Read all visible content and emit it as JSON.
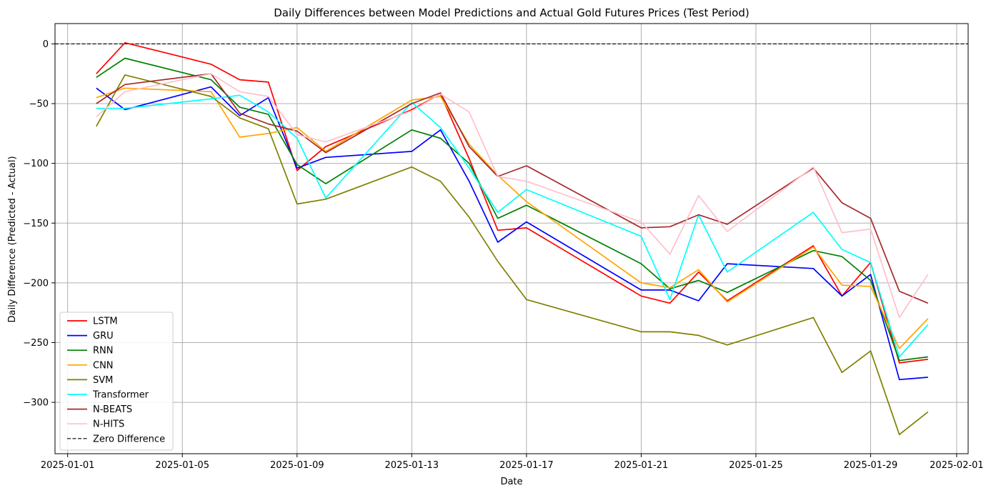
{
  "chart_data": {
    "type": "line",
    "title": "Daily Differences between Model Predictions and Actual Gold Futures Prices (Test Period)",
    "xlabel": "Date",
    "ylabel": "Daily Difference (Predicted - Actual)",
    "xlim": [
      "2025-01-01",
      "2025-02-01"
    ],
    "ylim": [
      -343,
      17
    ],
    "x_ticks": [
      "2025-01-01",
      "2025-01-05",
      "2025-01-09",
      "2025-01-13",
      "2025-01-17",
      "2025-01-21",
      "2025-01-25",
      "2025-01-29",
      "2025-02-01"
    ],
    "y_ticks": [
      0,
      -50,
      -100,
      -150,
      -200,
      -250,
      -300
    ],
    "grid": true,
    "legend_position": "lower left",
    "x": [
      "2025-01-02",
      "2025-01-03",
      "2025-01-06",
      "2025-01-07",
      "2025-01-08",
      "2025-01-09",
      "2025-01-10",
      "2025-01-13",
      "2025-01-14",
      "2025-01-15",
      "2025-01-16",
      "2025-01-17",
      "2025-01-21",
      "2025-01-22",
      "2025-01-23",
      "2025-01-24",
      "2025-01-27",
      "2025-01-28",
      "2025-01-29",
      "2025-01-30",
      "2025-01-31"
    ],
    "series": [
      {
        "name": "LSTM",
        "color": "#ff0000",
        "values": [
          -25,
          1,
          -17,
          -30,
          -32,
          -106,
          -86,
          -55,
          -42,
          -96,
          -156,
          -154,
          -211,
          -217,
          -191,
          -215,
          -169,
          -211,
          -183,
          -267,
          -264
        ]
      },
      {
        "name": "GRU",
        "color": "#0000ff",
        "values": [
          -37,
          -55,
          -36,
          -60,
          -45,
          -104,
          -95,
          -90,
          -72,
          -115,
          -166,
          -149,
          -206,
          -206,
          -215,
          -184,
          -188,
          -211,
          -193,
          -281,
          -279
        ]
      },
      {
        "name": "RNN",
        "color": "#008000",
        "values": [
          -28,
          -12,
          -30,
          -53,
          -59,
          -101,
          -117,
          -72,
          -79,
          -100,
          -146,
          -135,
          -184,
          -205,
          -198,
          -208,
          -173,
          -178,
          -198,
          -265,
          -262
        ]
      },
      {
        "name": "CNN",
        "color": "#ffa500",
        "values": [
          -45,
          -37,
          -40,
          -78,
          -75,
          -70,
          -90,
          -47,
          -44,
          -84,
          -110,
          -132,
          -200,
          -204,
          -189,
          -216,
          -170,
          -202,
          -203,
          -255,
          -230
        ]
      },
      {
        "name": "SVM",
        "color": "#808000",
        "values": [
          -69,
          -26,
          -44,
          -62,
          -71,
          -134,
          -130,
          -103,
          -115,
          -145,
          -182,
          -214,
          -241,
          -241,
          -244,
          -252,
          -229,
          -275,
          -257,
          -327,
          -308
        ]
      },
      {
        "name": "Transformer",
        "color": "#00ffff",
        "values": [
          -54,
          -54,
          -46,
          -43,
          -57,
          -79,
          -129,
          -49,
          -70,
          -104,
          -141,
          -122,
          -161,
          -214,
          -143,
          -191,
          -141,
          -172,
          -183,
          -262,
          -235
        ]
      },
      {
        "name": "N-BEATS",
        "color": "#a52a2a",
        "values": [
          -50,
          -34,
          -25,
          -58,
          -67,
          -73,
          -91,
          -50,
          -41,
          -86,
          -111,
          -102,
          -154,
          -153,
          -143,
          -151,
          -104,
          -133,
          -146,
          -207,
          -217
        ]
      },
      {
        "name": "N-HITS",
        "color": "#ffc0cb",
        "values": [
          -61,
          -40,
          -25,
          -40,
          -44,
          -76,
          -82,
          -56,
          -42,
          -57,
          -111,
          -115,
          -149,
          -176,
          -127,
          -157,
          -103,
          -158,
          -155,
          -229,
          -193
        ]
      }
    ],
    "reference_line": {
      "name": "Zero Difference",
      "value": 0,
      "color": "#000000",
      "style": "dashed"
    }
  }
}
